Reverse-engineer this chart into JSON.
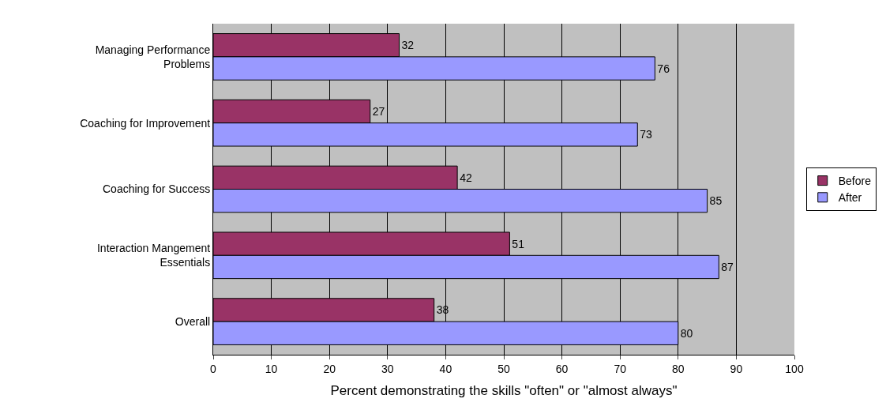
{
  "chart_data": {
    "type": "bar",
    "orientation": "horizontal",
    "xlabel": "Percent demonstrating the skills \"often\" or \"almost always\"",
    "categories": [
      "Managing Performance Problems",
      "Coaching for Improvement",
      "Coaching for Success",
      "Interaction Mangement Essentials",
      "Overall"
    ],
    "series": [
      {
        "name": "Before",
        "color": "#993366",
        "values": [
          32,
          27,
          42,
          51,
          38
        ]
      },
      {
        "name": "After",
        "color": "#9999ff",
        "values": [
          76,
          73,
          85,
          87,
          80
        ]
      }
    ],
    "xlim": [
      0,
      100
    ],
    "xticks": [
      0,
      10,
      20,
      30,
      40,
      50,
      60,
      70,
      80,
      90,
      100
    ],
    "grid": "x",
    "legend": "right",
    "data_labels": true
  }
}
